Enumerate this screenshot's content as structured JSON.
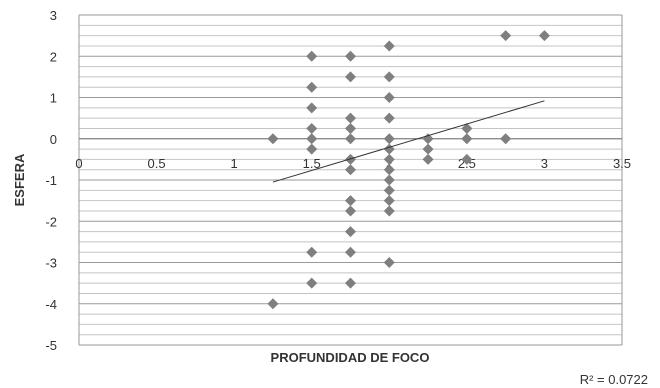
{
  "chart_data": {
    "type": "scatter",
    "title": "",
    "xlabel": "PROFUNDIDAD DE FOCO",
    "ylabel": "ESFERA",
    "xlim": [
      0,
      3.5
    ],
    "ylim": [
      -5,
      3
    ],
    "x_ticks": [
      0,
      0.5,
      1,
      1.5,
      2,
      2.5,
      3,
      3.5
    ],
    "x_tick_labels": [
      "0",
      "0.5",
      "1",
      "1.5",
      "2",
      "2.5",
      "3",
      "3.5"
    ],
    "y_ticks": [
      3,
      2,
      1,
      0,
      -1,
      -2,
      -3,
      -4,
      -5
    ],
    "y_tick_labels": [
      "3",
      "2",
      "1",
      "0",
      "-1",
      "-2",
      "-3",
      "-4",
      "-5"
    ],
    "grid": "horizontal",
    "legend": "none",
    "marker": "diamond",
    "marker_color": "#7f7f7f",
    "trendline_color": "#333333",
    "points": [
      {
        "x": 1.25,
        "y": 0
      },
      {
        "x": 1.25,
        "y": -4
      },
      {
        "x": 1.5,
        "y": 2
      },
      {
        "x": 1.5,
        "y": 1.25
      },
      {
        "x": 1.5,
        "y": 0.75
      },
      {
        "x": 1.5,
        "y": 0.25
      },
      {
        "x": 1.5,
        "y": 0
      },
      {
        "x": 1.5,
        "y": -0.25
      },
      {
        "x": 1.5,
        "y": -2.75
      },
      {
        "x": 1.5,
        "y": -3.5
      },
      {
        "x": 1.75,
        "y": 2
      },
      {
        "x": 1.75,
        "y": 1.5
      },
      {
        "x": 1.75,
        "y": 0.5
      },
      {
        "x": 1.75,
        "y": 0.25
      },
      {
        "x": 1.75,
        "y": 0
      },
      {
        "x": 1.75,
        "y": -0.5
      },
      {
        "x": 1.75,
        "y": -0.75
      },
      {
        "x": 1.75,
        "y": -1.5
      },
      {
        "x": 1.75,
        "y": -1.75
      },
      {
        "x": 1.75,
        "y": -2.25
      },
      {
        "x": 1.75,
        "y": -2.75
      },
      {
        "x": 1.75,
        "y": -3.5
      },
      {
        "x": 2,
        "y": 2.25
      },
      {
        "x": 2,
        "y": 1.5
      },
      {
        "x": 2,
        "y": 1
      },
      {
        "x": 2,
        "y": 0.5
      },
      {
        "x": 2,
        "y": 0
      },
      {
        "x": 2,
        "y": -0.25
      },
      {
        "x": 2,
        "y": -0.5
      },
      {
        "x": 2,
        "y": -0.75
      },
      {
        "x": 2,
        "y": -1
      },
      {
        "x": 2,
        "y": -1.25
      },
      {
        "x": 2,
        "y": -1.5
      },
      {
        "x": 2,
        "y": -1.75
      },
      {
        "x": 2,
        "y": -3
      },
      {
        "x": 2.25,
        "y": 0
      },
      {
        "x": 2.25,
        "y": -0.25
      },
      {
        "x": 2.25,
        "y": -0.5
      },
      {
        "x": 2.5,
        "y": 0.25
      },
      {
        "x": 2.5,
        "y": 0
      },
      {
        "x": 2.5,
        "y": -0.5
      },
      {
        "x": 2.75,
        "y": 2.5
      },
      {
        "x": 2.75,
        "y": 0
      },
      {
        "x": 3,
        "y": 2.5
      }
    ],
    "trendline": {
      "x": [
        1.25,
        3
      ],
      "y": [
        -1.05,
        0.92
      ]
    },
    "annotation": "R² = 0.0722"
  }
}
